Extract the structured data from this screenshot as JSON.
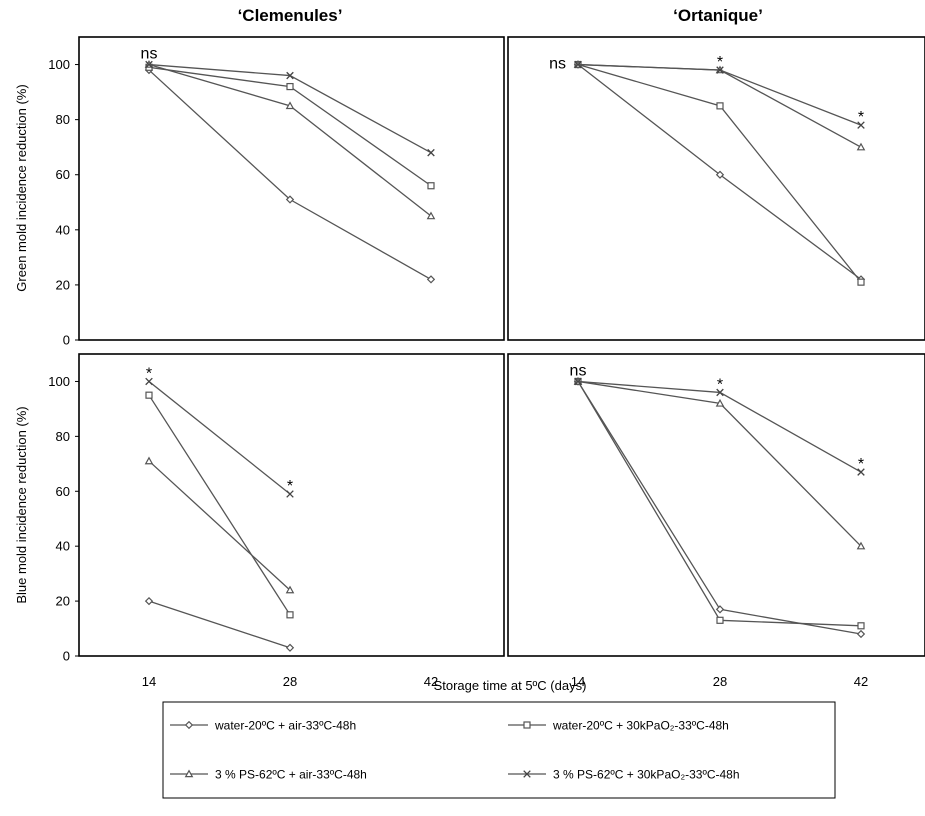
{
  "chart_data": {
    "type": "line",
    "column_titles": [
      "‘Clemenules’",
      "‘Ortanique’"
    ],
    "ylabels": [
      "Green mold incidence reduction (%)",
      "Blue mold incidence reduction (%)"
    ],
    "xlabel": "Storage time at 5ºC (days)",
    "x": [
      14,
      28,
      42
    ],
    "ylim": [
      0,
      110
    ],
    "yticks": [
      0,
      20,
      40,
      60,
      80,
      100
    ],
    "legend": [
      {
        "marker": "diamond",
        "label": "water-20ºC + air-33ºC-48h"
      },
      {
        "marker": "square",
        "label": "water-20ºC + 30kPaO₂-33ºC-48h"
      },
      {
        "marker": "triangle",
        "label": "3 % PS-62ºC + air-33ºC-48h"
      },
      {
        "marker": "x",
        "label": "3 % PS-62ºC + 30kPaO₂-33ºC-48h"
      }
    ],
    "panels": [
      {
        "mold": "Green mold",
        "cultivar": "‘Clemenules’",
        "series": [
          {
            "marker": "diamond",
            "values": [
              98,
              51,
              22
            ]
          },
          {
            "marker": "square",
            "values": [
              99,
              92,
              56
            ]
          },
          {
            "marker": "triangle",
            "values": [
              100,
              85,
              45
            ]
          },
          {
            "marker": "x",
            "values": [
              100,
              96,
              68
            ]
          }
        ],
        "annotations": [
          {
            "x": 14,
            "text": "ns"
          }
        ]
      },
      {
        "mold": "Green mold",
        "cultivar": "‘Ortanique’",
        "series": [
          {
            "marker": "diamond",
            "values": [
              100,
              60,
              22
            ]
          },
          {
            "marker": "square",
            "values": [
              100,
              85,
              21
            ]
          },
          {
            "marker": "triangle",
            "values": [
              100,
              98,
              70
            ]
          },
          {
            "marker": "x",
            "values": [
              100,
              98,
              78
            ]
          }
        ],
        "annotations": [
          {
            "x": 14,
            "text": "ns"
          },
          {
            "x": 28,
            "text": "*"
          },
          {
            "x": 42,
            "text": "*"
          }
        ]
      },
      {
        "mold": "Blue mold",
        "cultivar": "‘Clemenules’",
        "series": [
          {
            "marker": "diamond",
            "values": [
              20,
              3,
              null
            ]
          },
          {
            "marker": "square",
            "values": [
              95,
              15,
              null
            ]
          },
          {
            "marker": "triangle",
            "values": [
              71,
              24,
              null
            ]
          },
          {
            "marker": "x",
            "values": [
              100,
              59,
              null
            ]
          }
        ],
        "annotations": [
          {
            "x": 14,
            "text": "*"
          },
          {
            "x": 28,
            "text": "*"
          }
        ]
      },
      {
        "mold": "Blue mold",
        "cultivar": "‘Ortanique’",
        "series": [
          {
            "marker": "diamond",
            "values": [
              100,
              17,
              8
            ]
          },
          {
            "marker": "square",
            "values": [
              100,
              13,
              11
            ]
          },
          {
            "marker": "triangle",
            "values": [
              100,
              92,
              40
            ]
          },
          {
            "marker": "x",
            "values": [
              100,
              96,
              67
            ]
          }
        ],
        "annotations": [
          {
            "x": 14,
            "text": "ns"
          },
          {
            "x": 28,
            "text": "*"
          },
          {
            "x": 42,
            "text": "*"
          }
        ]
      }
    ]
  }
}
